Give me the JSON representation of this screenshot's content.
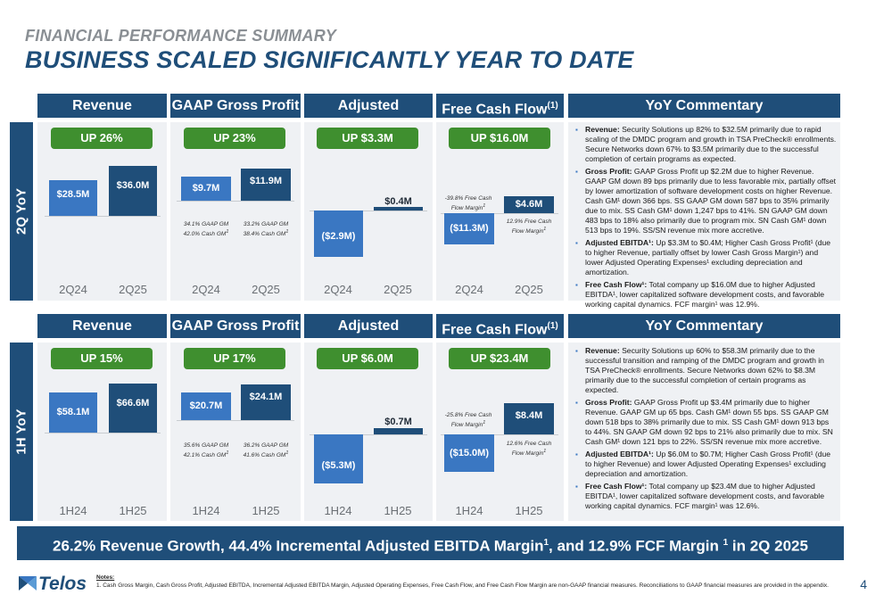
{
  "eyebrow": "FINANCIAL PERFORMANCE SUMMARY",
  "title": "BUSINESS SCALED SIGNIFICANTLY YEAR TO DATE",
  "headers": {
    "revenue": "Revenue",
    "gaap": "GAAP Gross Profit",
    "ebitda": "Adjusted EBITDA",
    "fcf": "Free Cash Flow",
    "sup": "(1)",
    "commentary": "YoY Commentary"
  },
  "q": {
    "side": "2Q YoY",
    "rev": {
      "pill": "UP 26%",
      "v1": "$28.5M",
      "v2": "$36.0M",
      "x1": "2Q24",
      "x2": "2Q25"
    },
    "gaap": {
      "pill": "UP 23%",
      "v1": "$9.7M",
      "v2": "$11.9M",
      "n1a": "34.1% GAAP GM",
      "n1b": "42.0% Cash GM",
      "n2a": "33.2% GAAP GM",
      "n2b": "38.4% Cash GM",
      "x1": "2Q24",
      "x2": "2Q25"
    },
    "ebitda": {
      "pill": "UP $3.3M",
      "v1": "($2.9M)",
      "v2": "$0.4M",
      "x1": "2Q24",
      "x2": "2Q25"
    },
    "fcf": {
      "pill": "UP $16.0M",
      "v1": "($11.3M)",
      "v2": "$4.6M",
      "n1a": "-39.8% Free Cash",
      "n1b": "Flow Margin",
      "n2a": "12.9% Free Cash",
      "n2b": "Flow Margin",
      "x1": "2Q24",
      "x2": "2Q25"
    },
    "comm": [
      {
        "head": "Revenue:",
        "text": " Security Solutions up 82% to $32.5M primarily due to rapid scaling of the DMDC program and growth in TSA PreCheck® enrollments. Secure Networks down 67% to $3.5M primarily due to the successful completion of certain programs as expected."
      },
      {
        "head": "Gross Profit:",
        "text": " GAAP Gross Profit up $2.2M due to higher Revenue. GAAP GM down 89 bps primarily due to less favorable mix, partially offset by lower amortization of software development costs on higher Revenue. Cash GM¹ down 366 bps. SS GAAP GM down 587 bps to 35% primarily due to mix. SS Cash GM¹ down 1,247 bps to 41%. SN GAAP GM down 483 bps to 18% also primarily due to program mix. SN Cash GM¹ down 513 bps to 19%. SS/SN revenue mix more accretive."
      },
      {
        "head": "Adjusted EBITDA¹:",
        "text": " Up $3.3M to $0.4M; Higher Cash Gross Profit¹ (due to higher Revenue, partially offset by lower Cash Gross Margin¹) and lower Adjusted Operating Expenses¹ excluding depreciation and amortization."
      },
      {
        "head": "Free Cash Flow¹:",
        "text": " Total company up $16.0M due to higher Adjusted EBITDA¹, lower capitalized software development costs, and favorable working capital dynamics. FCF margin¹ was 12.9%."
      }
    ]
  },
  "h": {
    "side": "1H YoY",
    "rev": {
      "pill": "UP 15%",
      "v1": "$58.1M",
      "v2": "$66.6M",
      "x1": "1H24",
      "x2": "1H25"
    },
    "gaap": {
      "pill": "UP 17%",
      "v1": "$20.7M",
      "v2": "$24.1M",
      "n1a": "35.6% GAAP GM",
      "n1b": "42.1% Cash GM",
      "n2a": "36.2% GAAP GM",
      "n2b": "41.6% Cash GM",
      "x1": "1H24",
      "x2": "1H25"
    },
    "ebitda": {
      "pill": "UP $6.0M",
      "v1": "($5.3M)",
      "v2": "$0.7M",
      "x1": "1H24",
      "x2": "1H25"
    },
    "fcf": {
      "pill": "UP $23.4M",
      "v1": "($15.0M)",
      "v2": "$8.4M",
      "n1a": "-25.8% Free Cash",
      "n1b": "Flow Margin",
      "n2a": "12.6% Free Cash",
      "n2b": "Flow Margin",
      "x1": "1H24",
      "x2": "1H25"
    },
    "comm": [
      {
        "head": "Revenue:",
        "text": " Security Solutions up 60% to $58.3M primarily due to the successful transition and ramping of the DMDC program and growth in TSA PreCheck® enrollments. Secure Networks down 62% to $8.3M primarily due to the successful completion of certain programs as expected."
      },
      {
        "head": "Gross Profit:",
        "text": " GAAP Gross Profit up $3.4M primarily due to higher Revenue. GAAP GM up 65 bps. Cash GM¹ down 55 bps. SS GAAP GM down 518 bps to 38% primarily due to mix. SS Cash GM¹ down 913 bps to 44%. SN GAAP GM down 92 bps to 21% also primarily due to mix. SN Cash GM¹ down 121 bps to 22%. SS/SN revenue mix more accretive."
      },
      {
        "head": "Adjusted EBITDA¹:",
        "text": " Up $6.0M to $0.7M; Higher Cash Gross Profit¹ (due to higher Revenue) and lower Adjusted Operating Expenses¹ excluding depreciation and amortization."
      },
      {
        "head": "Free Cash Flow¹:",
        "text": " Total company up $23.4M due to higher Adjusted EBITDA¹, lower capitalized software development costs, and favorable working capital dynamics. FCF margin¹ was 12.6%."
      }
    ]
  },
  "banner": {
    "p1": "26.2% Revenue Growth, 44.4% Incremental Adjusted EBITDA Margin",
    "s1": "1",
    "p2": ", and 12.9% FCF Margin ",
    "s2": "1",
    "p3": " in 2Q 2025"
  },
  "notes": {
    "title": "Notes:",
    "n1": "1.      Cash Gross Margin, Cash Gross Profit, Adjusted EBITDA, Incremental Adjusted EBITDA Margin, Adjusted Operating Expenses, Free Cash Flow, and Free Cash Flow Margin are non-GAAP financial measures. Reconciliations to GAAP financial measures are provided in the appendix."
  },
  "logo": "Telos",
  "page_number": "4"
}
